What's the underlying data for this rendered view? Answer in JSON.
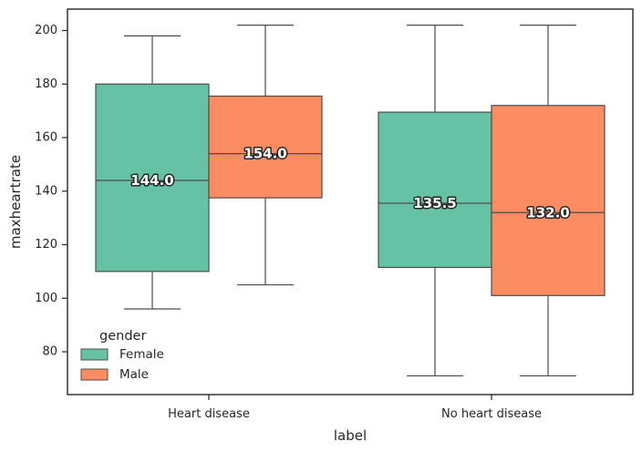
{
  "chart_data": {
    "type": "box",
    "xlabel": "label",
    "ylabel": "maxheartrate",
    "ylim": [
      64,
      208
    ],
    "yticks": [
      80,
      100,
      120,
      140,
      160,
      180,
      200
    ],
    "categories": [
      "Heart disease",
      "No heart disease"
    ],
    "grid": false,
    "legend": {
      "title": "gender",
      "placement": "lower-left",
      "entries": [
        "Female",
        "Male"
      ]
    },
    "series": [
      {
        "name": "Female",
        "color": "#66c2a5",
        "boxes": [
          {
            "category": "Heart disease",
            "whisker_low": 96,
            "q1": 110,
            "median": 144.0,
            "q3": 180,
            "whisker_high": 198,
            "label": "144.0"
          },
          {
            "category": "No heart disease",
            "whisker_low": 71,
            "q1": 111.5,
            "median": 135.5,
            "q3": 169.5,
            "whisker_high": 202,
            "label": "135.5"
          }
        ]
      },
      {
        "name": "Male",
        "color": "#fc8d62",
        "boxes": [
          {
            "category": "Heart disease",
            "whisker_low": 105,
            "q1": 137.5,
            "median": 154.0,
            "q3": 175.5,
            "whisker_high": 202,
            "label": "154.0"
          },
          {
            "category": "No heart disease",
            "whisker_low": 71,
            "q1": 101,
            "median": 132.0,
            "q3": 172,
            "whisker_high": 202,
            "label": "132.0"
          }
        ]
      }
    ]
  }
}
